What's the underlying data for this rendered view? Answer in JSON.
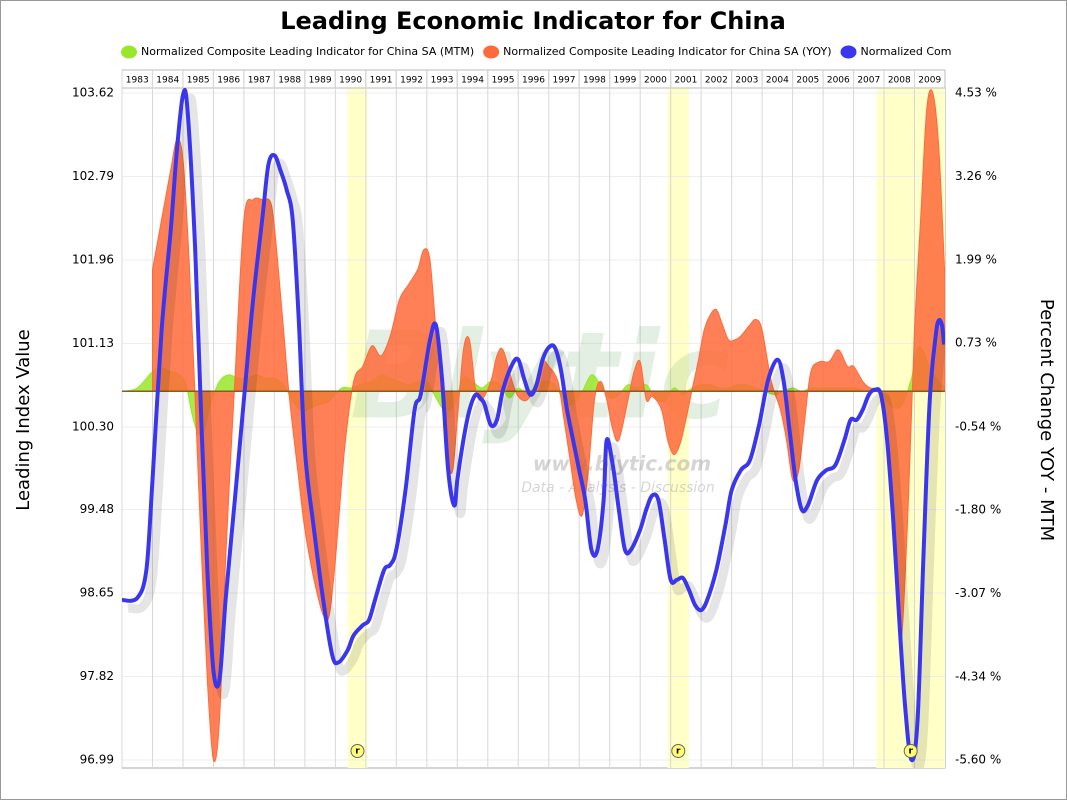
{
  "chart_data": {
    "type": "combo",
    "title": "Leading Economic Indicator for China",
    "y_label": "Leading Index Value",
    "y2_label": "Percent Change YOY - MTM",
    "watermark": {
      "logo": "Blytic",
      "url": "www.blytic.com",
      "tagline": "Data - Analysis - Discussion"
    },
    "xlim": [
      1983,
      2010
    ],
    "xticks": [
      1983,
      1984,
      1985,
      1986,
      1987,
      1988,
      1989,
      1990,
      1991,
      1992,
      1993,
      1994,
      1995,
      1996,
      1997,
      1998,
      1999,
      2000,
      2001,
      2002,
      2003,
      2004,
      2005,
      2006,
      2007,
      2008,
      2009
    ],
    "ylim": [
      96.99,
      103.62
    ],
    "yticks": [
      96.99,
      97.82,
      98.65,
      99.48,
      {
        "value": 100.3,
        "label": "100.30"
      },
      101.13,
      101.96,
      102.79,
      103.62
    ],
    "y2lim": [
      -5.6,
      4.53
    ],
    "y2ticks": [
      {
        "value": -5.6,
        "label": "-5.60 %"
      },
      {
        "value": -4.34,
        "label": "-4.34 %"
      },
      {
        "value": -3.07,
        "label": "-3.07 %"
      },
      {
        "value": -1.8,
        "label": "-1.80 %"
      },
      {
        "value": -0.54,
        "label": "-0.54 %"
      },
      {
        "value": 0.73,
        "label": "0.73 %"
      },
      {
        "value": 1.99,
        "label": "1.99 %"
      },
      {
        "value": 3.26,
        "label": "3.26 %"
      },
      {
        "value": 4.53,
        "label": "4.53 %"
      }
    ],
    "grid": true,
    "recessions": [
      {
        "start": 1990.4,
        "end": 1991.05,
        "label": "r"
      },
      {
        "start": 2000.9,
        "end": 2001.6,
        "label": "r"
      },
      {
        "start": 2007.75,
        "end": 2010,
        "label": "r"
      }
    ],
    "series": [
      {
        "name": "Normalized Composite Leading Indicator for China SA (MTM)",
        "type": "area",
        "axis": "y2",
        "color": "#99e62a",
        "x": [
          1983,
          1983.5,
          1984,
          1984.3,
          1984.6,
          1984.9,
          1985.1,
          1985.3,
          1985.5,
          1985.7,
          1985.9,
          1986.2,
          1986.5,
          1986.8,
          1987.1,
          1987.4,
          1987.7,
          1988,
          1988.3,
          1988.6,
          1988.9,
          1989.2,
          1989.5,
          1989.8,
          1990.2,
          1990.5,
          1990.8,
          1991.2,
          1991.5,
          1991.8,
          1992.1,
          1992.4,
          1992.7,
          1993,
          1993.3,
          1993.6,
          1993.9,
          1994.2,
          1994.5,
          1994.8,
          1995.1,
          1995.4,
          1995.7,
          1996,
          1996.3,
          1996.6,
          1996.9,
          1997.2,
          1997.5,
          1997.8,
          1998.1,
          1998.4,
          1998.7,
          1999,
          1999.3,
          1999.6,
          1999.9,
          2000.2,
          2000.5,
          2000.8,
          2001.1,
          2001.4,
          2001.7,
          2002,
          2002.3,
          2002.6,
          2002.9,
          2003.2,
          2003.5,
          2003.8,
          2004.1,
          2004.4,
          2004.7,
          2005,
          2005.3,
          2005.6,
          2005.9,
          2006.2,
          2006.5,
          2006.8,
          2007.1,
          2007.4,
          2007.7,
          2008,
          2008.3,
          2008.6,
          2008.9,
          2009.1,
          2009.3,
          2009.5,
          2009.8,
          2010
        ],
        "values": [
          0,
          0.05,
          0.3,
          0.35,
          0.3,
          0.25,
          0.1,
          -0.35,
          -0.65,
          -0.6,
          -0.2,
          0.15,
          0.25,
          0.2,
          0.2,
          0.25,
          0.2,
          0.2,
          0.1,
          -0.15,
          -0.3,
          -0.25,
          -0.2,
          -0.15,
          0.05,
          0.05,
          0.1,
          0.15,
          0.25,
          0.2,
          0.15,
          0.1,
          0.15,
          0.15,
          -0.1,
          -0.3,
          -0.2,
          0.2,
          0.15,
          0.05,
          0.15,
          0.1,
          -0.1,
          0.05,
          -0.05,
          0.1,
          0.15,
          0.1,
          -0.15,
          -0.2,
          0,
          0.25,
          0.1,
          -0.1,
          -0.05,
          0.1,
          0.05,
          0.1,
          -0.1,
          -0.15,
          0.05,
          -0.05,
          0.05,
          0.1,
          0.1,
          0.05,
          0.05,
          0.1,
          0.1,
          0.05,
          0,
          -0.05,
          0,
          0.05,
          0,
          0.05,
          0.05,
          0.05,
          0.05,
          0.05,
          0.05,
          0,
          0.05,
          -0.1,
          -0.25,
          -0.2,
          0.2,
          0.65,
          0.6,
          0.35,
          0.15,
          0.05
        ]
      },
      {
        "name": "Normalized Composite Leading Indicator for China SA (YOY)",
        "type": "area",
        "axis": "y2",
        "color": "#ff6a3a",
        "x": [
          1984,
          1984.3,
          1984.6,
          1984.8,
          1985,
          1985.2,
          1985.4,
          1985.6,
          1985.8,
          1986,
          1986.2,
          1986.4,
          1986.7,
          1987,
          1987.3,
          1987.6,
          1987.9,
          1988.1,
          1988.3,
          1988.5,
          1988.8,
          1989,
          1989.3,
          1989.6,
          1989.8,
          1990,
          1990.3,
          1990.6,
          1990.9,
          1991.2,
          1991.5,
          1991.8,
          1992.1,
          1992.4,
          1992.7,
          1992.9,
          1993.1,
          1993.3,
          1993.5,
          1993.7,
          1993.85,
          1994,
          1994.2,
          1994.4,
          1994.6,
          1994.8,
          1995.1,
          1995.3,
          1995.5,
          1995.8,
          1996,
          1996.3,
          1996.6,
          1996.8,
          1997,
          1997.3,
          1997.5,
          1997.7,
          1997.9,
          1998.1,
          1998.3,
          1998.5,
          1998.7,
          1998.9,
          1999.1,
          1999.3,
          1999.6,
          1999.8,
          2000,
          2000.2,
          2000.4,
          2000.7,
          2000.9,
          2001.1,
          2001.3,
          2001.5,
          2001.7,
          2001.9,
          2002.1,
          2002.3,
          2002.5,
          2002.7,
          2002.9,
          2003.1,
          2003.3,
          2003.6,
          2003.8,
          2004,
          2004.3,
          2004.6,
          2004.8,
          2005,
          2005.2,
          2005.4,
          2005.6,
          2005.9,
          2006.2,
          2006.5,
          2006.8,
          2007,
          2007.3,
          2007.5,
          2007.7,
          2007.9,
          2008.1,
          2008.3,
          2008.5,
          2008.6,
          2008.8,
          2009,
          2009.2,
          2009.4,
          2009.6,
          2009.8,
          2010
        ],
        "values": [
          1.85,
          2.61,
          3.37,
          3.82,
          3.52,
          2,
          -0.13,
          -2.41,
          -4.38,
          -5.6,
          -4.99,
          -2.56,
          0.15,
          2.61,
          2.91,
          2.91,
          2.83,
          2,
          0.93,
          -0.13,
          -1.34,
          -2.1,
          -2.86,
          -3.4,
          -3.4,
          -2.56,
          -0.89,
          0.15,
          0.38,
          0.69,
          0.54,
          0.84,
          1.39,
          1.62,
          1.85,
          2.15,
          2,
          0.93,
          0.02,
          -1.04,
          -1.2,
          -0.43,
          0.63,
          0.78,
          0.02,
          -0.13,
          0.15,
          0.54,
          0.63,
          0.15,
          -0.08,
          -0.13,
          0.15,
          0.45,
          0.38,
          0.15,
          -0.43,
          -1.04,
          -1.65,
          -1.88,
          -1.2,
          -0.13,
          0.15,
          -0.13,
          -0.58,
          -0.74,
          -0.13,
          0.3,
          0.45,
          -0.13,
          -0.08,
          -0.28,
          -0.74,
          -0.96,
          -0.81,
          -0.43,
          0.02,
          0.45,
          0.93,
          1.16,
          1.24,
          1.01,
          0.78,
          0.78,
          0.84,
          1.01,
          1.09,
          0.93,
          0.15,
          -0.28,
          -0.74,
          -1.34,
          -1.2,
          -0.43,
          0.3,
          0.45,
          0.45,
          0.63,
          0.38,
          0.38,
          0.15,
          0.06,
          0.02,
          -0.13,
          -0.89,
          -2.26,
          -3.62,
          -3.62,
          -1.65,
          0.93,
          2.61,
          4.28,
          4.53,
          3.67,
          1.69
        ]
      },
      {
        "name": "Normalized Com",
        "type": "line",
        "axis": "y",
        "color": "#3a36ee",
        "x": [
          1983,
          1983.5,
          1983.8,
          1984,
          1984.3,
          1984.6,
          1984.8,
          1985,
          1985.15,
          1985.4,
          1985.6,
          1985.8,
          1986,
          1986.2,
          1986.4,
          1986.7,
          1987,
          1987.3,
          1987.6,
          1987.8,
          1988,
          1988.2,
          1988.4,
          1988.6,
          1988.8,
          1989,
          1989.3,
          1989.6,
          1989.9,
          1990.1,
          1990.4,
          1990.6,
          1990.9,
          1991.1,
          1991.3,
          1991.6,
          1991.8,
          1992,
          1992.3,
          1992.6,
          1992.8,
          1993.1,
          1993.3,
          1993.5,
          1993.7,
          1993.9,
          1994,
          1994.2,
          1994.4,
          1994.6,
          1994.8,
          1994.9,
          1995.1,
          1995.3,
          1995.5,
          1995.8,
          1996,
          1996.2,
          1996.4,
          1996.6,
          1996.8,
          1997,
          1997.2,
          1997.4,
          1997.6,
          1997.8,
          1998,
          1998.2,
          1998.4,
          1998.6,
          1998.8,
          1998.9,
          1999.1,
          1999.3,
          1999.5,
          1999.7,
          2000,
          2000.2,
          2000.4,
          2000.6,
          2000.8,
          2001,
          2001.2,
          2001.4,
          2001.6,
          2001.8,
          2002,
          2002.2,
          2002.5,
          2002.8,
          2003,
          2003.3,
          2003.6,
          2003.9,
          2004.2,
          2004.5,
          2004.7,
          2004.9,
          2005.1,
          2005.3,
          2005.5,
          2005.8,
          2006.1,
          2006.4,
          2006.7,
          2006.9,
          2007.1,
          2007.3,
          2007.5,
          2007.7,
          2007.9,
          2008.1,
          2008.3,
          2008.5,
          2008.7,
          2008.9,
          2009.1,
          2009.3,
          2009.5,
          2009.7,
          2009.8,
          2009.9,
          2009.97
        ],
        "values": [
          98.58,
          98.6,
          98.88,
          99.77,
          101.26,
          102.26,
          103.05,
          103.6,
          103.45,
          102.06,
          100.37,
          98.88,
          97.88,
          97.79,
          98.58,
          99.57,
          100.57,
          101.56,
          102.36,
          102.9,
          103,
          102.85,
          102.66,
          102.36,
          101.36,
          100.07,
          99.28,
          98.58,
          98.03,
          97.96,
          98.08,
          98.23,
          98.33,
          98.38,
          98.58,
          98.88,
          98.93,
          99.08,
          99.67,
          100.47,
          100.62,
          101.16,
          101.31,
          100.77,
          99.87,
          99.52,
          99.77,
          100.17,
          100.47,
          100.62,
          100.57,
          100.52,
          100.32,
          100.37,
          100.67,
          100.92,
          100.97,
          100.77,
          100.62,
          100.72,
          100.97,
          101.09,
          101.09,
          100.87,
          100.47,
          100.17,
          99.87,
          99.57,
          99.08,
          99.08,
          99.57,
          100.17,
          99.92,
          99.48,
          99.08,
          99.08,
          99.28,
          99.48,
          99.62,
          99.57,
          99.18,
          98.78,
          98.78,
          98.8,
          98.68,
          98.53,
          98.48,
          98.58,
          98.88,
          99.33,
          99.67,
          99.87,
          99.97,
          100.32,
          100.77,
          100.97,
          100.77,
          100.27,
          99.77,
          99.48,
          99.52,
          99.77,
          99.87,
          99.92,
          100.17,
          100.37,
          100.37,
          100.47,
          100.62,
          100.67,
          100.62,
          100.17,
          99.38,
          98.38,
          97.49,
          96.99,
          97.39,
          99.08,
          100.57,
          101.22,
          101.36,
          101.31,
          101.12
        ]
      }
    ]
  }
}
